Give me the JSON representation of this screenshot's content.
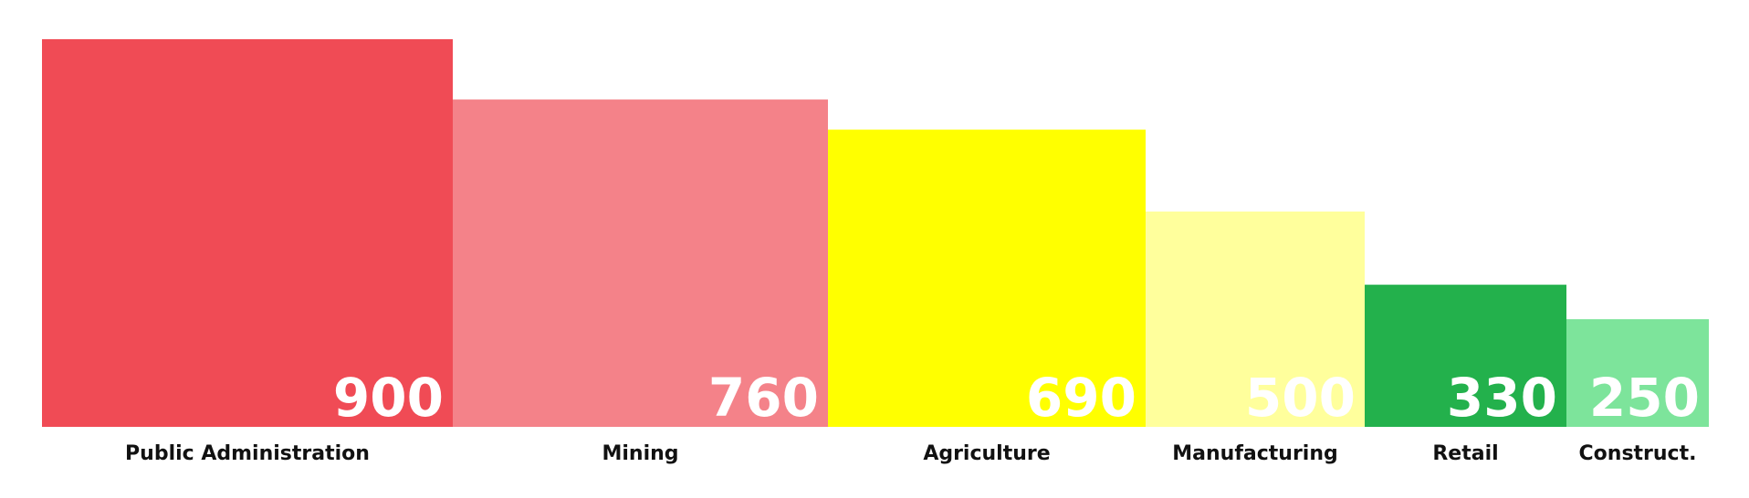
{
  "chart_data": {
    "type": "bar",
    "variant": "variable-width",
    "title": "",
    "xlabel": "",
    "ylabel": "",
    "categories": [
      "Public Administration",
      "Mining",
      "Agriculture",
      "Manufacturing",
      "Retail",
      "Construct."
    ],
    "values": [
      900,
      760,
      690,
      500,
      330,
      250
    ],
    "colors": [
      "#f04b55",
      "#f48289",
      "#ffff00",
      "#ffff9c",
      "#23b14c",
      "#7de49b"
    ],
    "ylim": [
      0,
      900
    ],
    "grid": false,
    "legend": "none"
  }
}
